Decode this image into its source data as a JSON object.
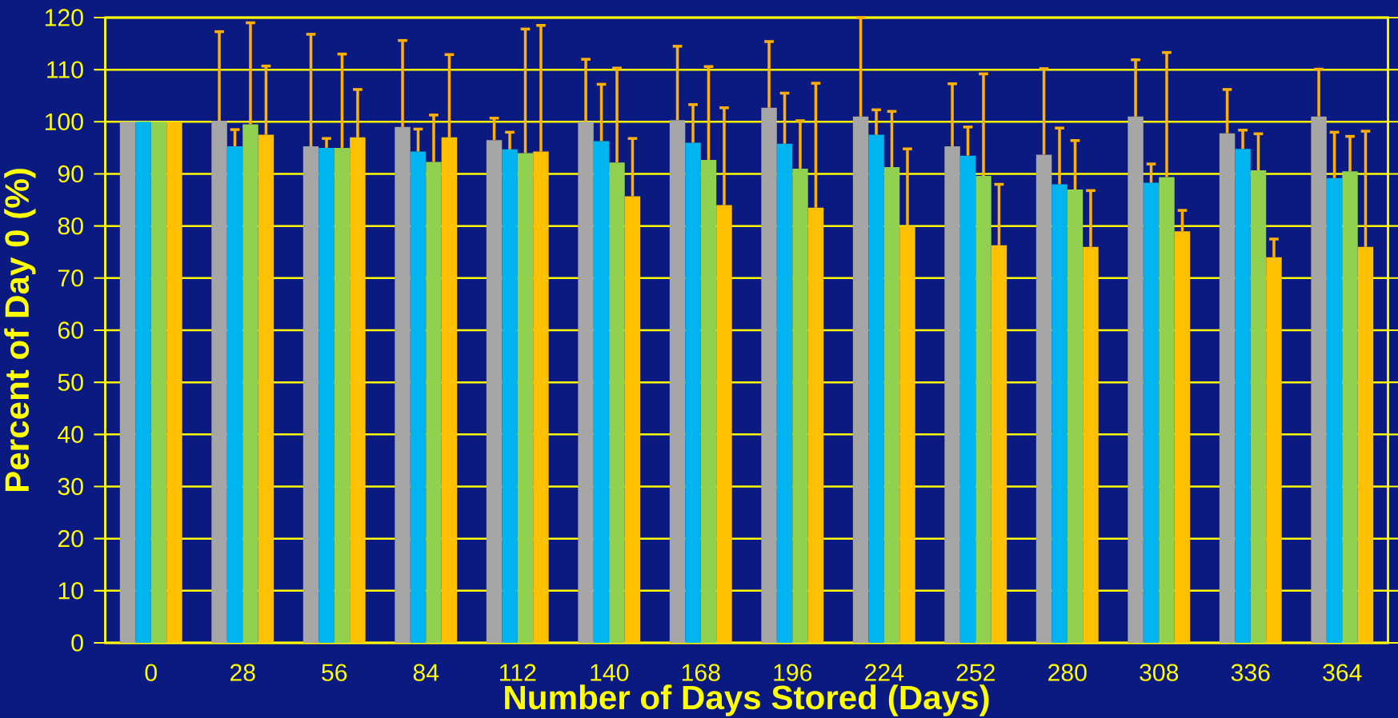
{
  "chart_data": {
    "type": "bar",
    "xlabel": "Number of Days Stored (Days)",
    "ylabel": "Percent of Day 0 (%)",
    "categories": [
      "0",
      "28",
      "56",
      "84",
      "112",
      "140",
      "168",
      "196",
      "224",
      "252",
      "280",
      "308",
      "336",
      "364"
    ],
    "series": [
      {
        "color": "#a6a6a6",
        "values": [
          100,
          100.2,
          95.3,
          99,
          96.5,
          100,
          100.3,
          102.7,
          101,
          95.3,
          93.7,
          101,
          97.8,
          101
        ],
        "errors": [
          null,
          [
            100.2,
            117.3
          ],
          [
            95.3,
            116.8
          ],
          [
            99,
            115.6
          ],
          [
            96.5,
            100.7
          ],
          [
            100,
            112
          ],
          [
            100.3,
            114.5
          ],
          [
            102.7,
            115.4
          ],
          [
            101,
            120
          ],
          [
            95.3,
            107.3
          ],
          [
            93.7,
            110.2
          ],
          [
            101,
            111.9
          ],
          [
            97.8,
            106.2
          ],
          [
            101,
            110.1
          ]
        ]
      },
      {
        "color": "#00b4f0",
        "values": [
          100,
          95.3,
          95,
          94.3,
          94.7,
          96.3,
          96,
          95.8,
          97.5,
          93.5,
          88,
          88.3,
          94.8,
          89.2
        ],
        "errors": [
          null,
          [
            95.3,
            98.5
          ],
          [
            95,
            96.8
          ],
          [
            94.3,
            98.6
          ],
          [
            94.7,
            98
          ],
          [
            96.3,
            107.2
          ],
          [
            96,
            103.3
          ],
          [
            95.8,
            105.5
          ],
          [
            97.5,
            102.3
          ],
          [
            93.5,
            99
          ],
          [
            88,
            98.8
          ],
          [
            88.3,
            91.9
          ],
          [
            94.8,
            98.4
          ],
          [
            89.2,
            98
          ]
        ]
      },
      {
        "color": "#92d050",
        "values": [
          100,
          99.5,
          95,
          92.3,
          94,
          92.2,
          92.7,
          91,
          91.3,
          89.6,
          87,
          89.4,
          90.7,
          90.5
        ],
        "errors": [
          null,
          [
            99.5,
            119
          ],
          [
            95,
            113
          ],
          [
            92.3,
            101.3
          ],
          [
            94,
            117.8
          ],
          [
            92.2,
            110.3
          ],
          [
            92.7,
            110.6
          ],
          [
            91,
            100.2
          ],
          [
            91.3,
            102
          ],
          [
            89.6,
            109.2
          ],
          [
            87,
            96.4
          ],
          [
            89.4,
            113.3
          ],
          [
            90.7,
            97.7
          ],
          [
            90.5,
            97.2
          ]
        ]
      },
      {
        "color": "#ffc000",
        "values": [
          100,
          97.5,
          97,
          97,
          94.3,
          85.7,
          84,
          83.5,
          80,
          76.3,
          76,
          79,
          74,
          76
        ],
        "errors": [
          null,
          [
            97.5,
            110.7
          ],
          [
            97,
            106.2
          ],
          [
            97,
            112.9
          ],
          [
            94.3,
            118.5
          ],
          [
            85.7,
            96.8
          ],
          [
            84,
            102.7
          ],
          [
            83.5,
            107.4
          ],
          [
            80,
            94.8
          ],
          [
            76.3,
            88
          ],
          [
            76,
            86.8
          ],
          [
            79,
            83
          ],
          [
            74,
            77.5
          ],
          [
            76,
            98.2
          ]
        ]
      }
    ],
    "ylim": [
      0,
      120
    ],
    "yticks": [
      0,
      10,
      20,
      30,
      40,
      50,
      60,
      70,
      80,
      90,
      100,
      110,
      120
    ],
    "grid": "y"
  }
}
